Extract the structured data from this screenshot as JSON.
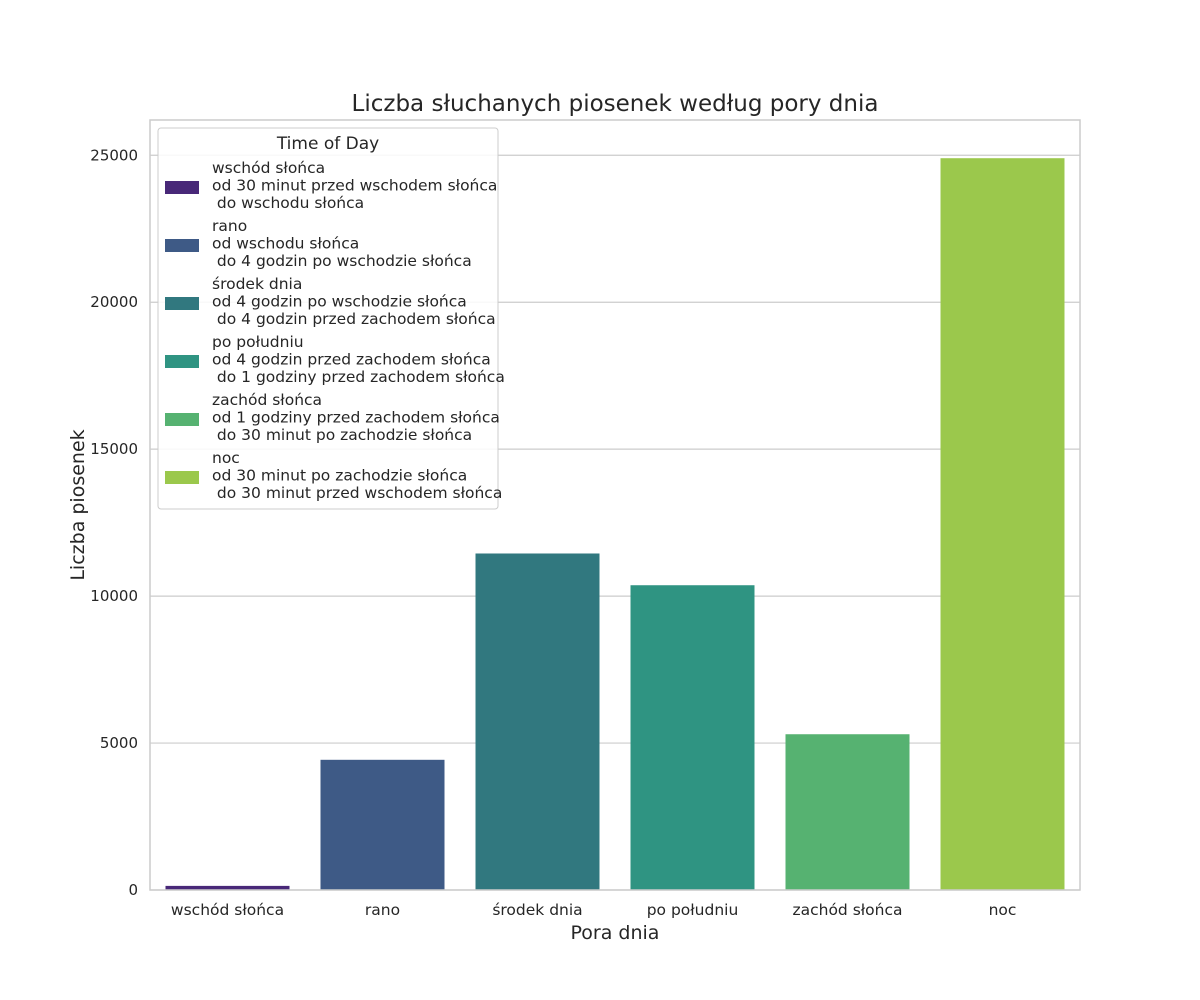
{
  "chart_data": {
    "type": "bar",
    "title": "Liczba słuchanych piosenek według pory dnia",
    "xlabel": "Pora dnia",
    "ylabel": "Liczba piosenek",
    "ylim": [
      0,
      26200
    ],
    "yticks": [
      0,
      5000,
      10000,
      15000,
      20000,
      25000
    ],
    "grid": true,
    "categories": [
      "wschód słońca",
      "rano",
      "środek dnia",
      "po południu",
      "zachód słońca",
      "noc"
    ],
    "values": [
      140,
      4430,
      11450,
      10370,
      5300,
      24900
    ],
    "colors": [
      "#482878",
      "#3e5a86",
      "#31787f",
      "#2f9482",
      "#56b271",
      "#9bc84c"
    ],
    "legend": {
      "title": "Time of Day",
      "position": "upper-left",
      "entries": [
        {
          "lines": [
            "wschód słońca",
            "od 30 minut przed wschodem słońca",
            " do wschodu słońca"
          ]
        },
        {
          "lines": [
            "rano",
            "od wschodu słońca",
            " do 4 godzin po wschodzie słońca"
          ]
        },
        {
          "lines": [
            "środek dnia",
            "od 4 godzin po wschodzie słońca",
            " do 4 godzin przed zachodem słońca"
          ]
        },
        {
          "lines": [
            "po południu",
            "od 4 godzin przed zachodem słońca",
            " do 1 godziny przed zachodem słońca"
          ]
        },
        {
          "lines": [
            "zachód słońca",
            "od 1 godziny przed zachodem słońca",
            " do 30 minut po zachodzie słońca"
          ]
        },
        {
          "lines": [
            "noc",
            "od 30 minut po zachodzie słońca",
            " do 30 minut przed wschodem słońca"
          ]
        }
      ]
    }
  }
}
